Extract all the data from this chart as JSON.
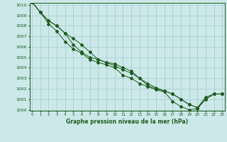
{
  "title": "Graphe pression niveau de la mer (hPa)",
  "background_color": "#cce8e8",
  "grid_color": "#aacfcf",
  "line_color": "#1e5c1e",
  "x_ticks": [
    0,
    1,
    2,
    3,
    4,
    5,
    6,
    7,
    8,
    9,
    10,
    11,
    12,
    13,
    14,
    15,
    16,
    17,
    18,
    19,
    20,
    21,
    22,
    23
  ],
  "y_min": 1000,
  "y_max": 1010,
  "y_ticks": [
    1000,
    1001,
    1002,
    1003,
    1004,
    1005,
    1006,
    1007,
    1008,
    1009,
    1010
  ],
  "series1": [
    1010.3,
    1009.3,
    1008.5,
    1008.0,
    1007.3,
    1006.8,
    1006.2,
    1005.5,
    1004.8,
    1004.5,
    1004.4,
    1004.0,
    1003.7,
    1003.0,
    1002.5,
    1002.1,
    1001.8,
    1001.5,
    1001.0,
    1000.5,
    1000.2,
    1001.2,
    1001.5,
    1001.5
  ],
  "series2": [
    1010.3,
    1009.3,
    1008.5,
    1008.0,
    1007.3,
    1006.2,
    1005.5,
    1005.0,
    1004.8,
    1004.5,
    1004.2,
    1003.8,
    1003.5,
    1003.0,
    1002.3,
    1002.0,
    1001.8,
    1001.5,
    1001.0,
    1000.5,
    1000.2,
    1001.0,
    1001.5,
    1001.5
  ],
  "series3": [
    1010.3,
    1009.3,
    1008.2,
    1007.5,
    1006.5,
    1005.8,
    1005.4,
    1004.8,
    1004.5,
    1004.3,
    1004.0,
    1003.3,
    1003.0,
    1002.5,
    1002.2,
    1001.9,
    1001.7,
    1000.8,
    1000.3,
    1000.0,
    1000.1,
    1001.0,
    1001.5,
    1001.5
  ]
}
